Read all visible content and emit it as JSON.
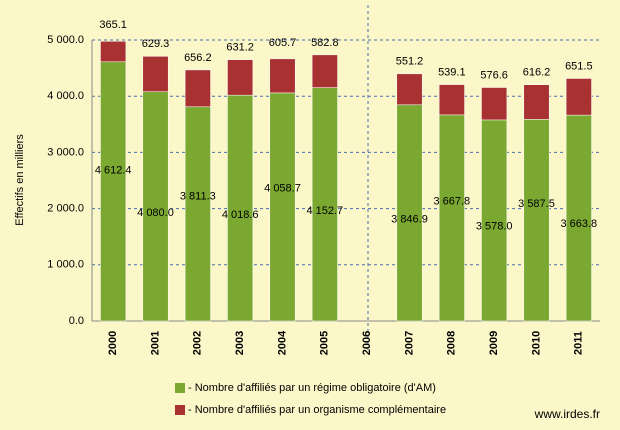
{
  "chart_data": {
    "type": "stacked-bar",
    "y_label": "Effectifs en milliers",
    "categories": [
      "2000",
      "2001",
      "2002",
      "2003",
      "2004",
      "2005",
      "2006",
      "2007",
      "2008",
      "2009",
      "2010",
      "2011"
    ],
    "series": [
      {
        "name": "- Nombre d'affiliés par un régime obligatoire (d'AM)",
        "color": "#7aa830",
        "values": [
          4612.4,
          4080.0,
          3811.3,
          4018.6,
          4058.7,
          4152.7,
          null,
          3846.9,
          3667.8,
          3578.0,
          3587.5,
          3663.8
        ],
        "value_labels": [
          "4 612.4",
          "4 080.0",
          "3 811.3",
          "4 018.6",
          "4 058.7",
          "4 152.7",
          null,
          "3 846.9",
          "3 667.8",
          "3 578.0",
          "3 587.5",
          "3 663.8"
        ]
      },
      {
        "name": "- Nombre d'affiliés par un organisme complémentaire",
        "color": "#a83232",
        "values": [
          365.1,
          629.3,
          656.2,
          631.2,
          605.7,
          582.8,
          null,
          551.2,
          539.1,
          576.6,
          616.2,
          651.5
        ]
      }
    ],
    "ylim": [
      0,
      5000
    ],
    "yticks": [
      {
        "value": 0,
        "label": "0.0"
      },
      {
        "value": 1000,
        "label": "1 000.0"
      },
      {
        "value": 2000,
        "label": "2 000.0"
      },
      {
        "value": 3000,
        "label": "3 000.0"
      },
      {
        "value": 4000,
        "label": "4 000.0"
      },
      {
        "value": 5000,
        "label": "5 000.0"
      }
    ],
    "grid": true,
    "source": "www.irdes.fr"
  }
}
